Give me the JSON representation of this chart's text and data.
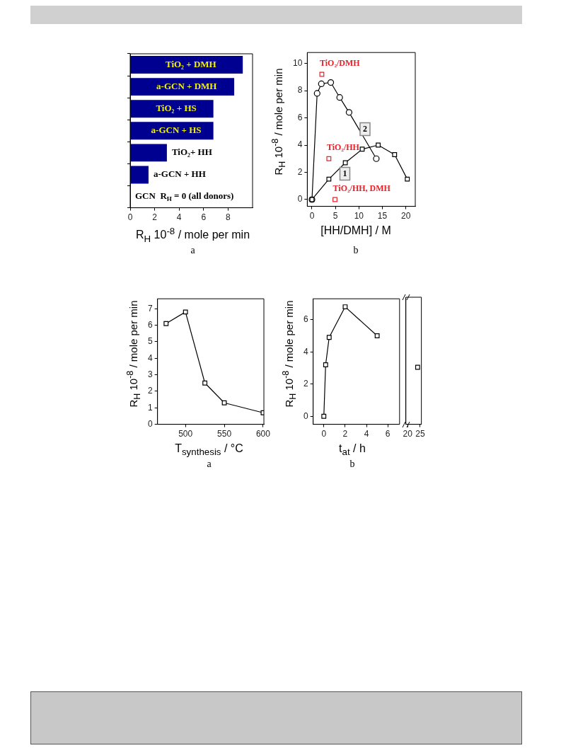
{
  "chart_data": [
    {
      "type": "bar",
      "orientation": "horizontal",
      "categories": [
        "TiO₂ + DMH",
        "a-GCN + DMH",
        "TiO₂ + HS",
        "a-GCN + HS",
        "TiO₂+ HH",
        "a-GCN + HH",
        "GCN  R$_{H}$ = 0 (all donors)"
      ],
      "values": [
        9.2,
        8.5,
        6.8,
        6.8,
        3.0,
        1.5,
        0
      ],
      "color": "#000090",
      "xlim": [
        0,
        10
      ],
      "xticks": [
        0,
        2,
        4,
        6,
        8
      ],
      "xlabel": "R$_{H}$ 10$^{-8}$ / mole per min",
      "annotations": [
        "a"
      ]
    },
    {
      "type": "line",
      "xlim": [
        -1,
        22
      ],
      "xticks": [
        0,
        5,
        10,
        15,
        20
      ],
      "ylim": [
        -0.5,
        10.8
      ],
      "yticks": [
        0,
        2,
        4,
        6,
        8,
        10
      ],
      "xlabel": "[HH/DMH] / M",
      "ylabel": "R$_{H}$ 10$^{-8}$ / mole per min",
      "annotations": [
        "b"
      ],
      "series": [
        {
          "name": "1",
          "type": "line",
          "marker": "square",
          "color": "#000000",
          "x": [
            0,
            3.6,
            7.1,
            10.7,
            14.1,
            17.6,
            20.3
          ],
          "values": [
            0,
            1.5,
            2.7,
            3.7,
            4.0,
            3.3,
            1.5
          ]
        },
        {
          "name": "2",
          "type": "line",
          "marker": "circle",
          "color": "#000000",
          "x": [
            0,
            1.1,
            2.0,
            4.0,
            5.9,
            7.9,
            13.7
          ],
          "values": [
            0,
            7.8,
            8.5,
            8.6,
            7.5,
            6.4,
            3.0
          ]
        },
        {
          "name": "TiO₂/DMH",
          "type": "scatter",
          "marker": "square",
          "color": "#e8202a",
          "x": [
            2.1
          ],
          "values": [
            9.2
          ]
        },
        {
          "name": "TiO₂/HH",
          "type": "scatter",
          "marker": "square",
          "color": "#e8202a",
          "x": [
            3.6
          ],
          "values": [
            3.0
          ]
        },
        {
          "name": "TiO₂/HH, DMH",
          "type": "scatter",
          "marker": "square",
          "color": "#e8202a",
          "x": [
            4.9
          ],
          "values": [
            0
          ]
        }
      ]
    },
    {
      "type": "line",
      "marker": "square",
      "color": "#000000",
      "x": [
        475,
        500,
        525,
        550,
        600
      ],
      "values": [
        6.1,
        6.8,
        2.5,
        1.3,
        0.7
      ],
      "xlim": [
        464,
        601
      ],
      "xticks": [
        500,
        550,
        600
      ],
      "ylim": [
        0,
        7.6
      ],
      "yticks": [
        0,
        1,
        2,
        3,
        4,
        5,
        6,
        7
      ],
      "xlabel": "T$_{synthesis}$ / °C",
      "ylabel": "R$_{H}$ 10$^{-8}$ / mole per min",
      "annotations": [
        "a"
      ]
    },
    {
      "type": "line",
      "marker": "square",
      "color": "#000000",
      "x": [
        0,
        0.17,
        0.5,
        2,
        5
      ],
      "values": [
        0,
        3.2,
        4.9,
        6.8,
        5.0
      ],
      "xlim": [
        -1,
        7.1
      ],
      "xticks": [
        0,
        2,
        4,
        6
      ],
      "ylim": [
        -0.5,
        7.3
      ],
      "yticks": [
        0,
        2,
        4,
        6
      ],
      "xlabel": "t$_{at}$ / h",
      "ylabel": "R$_{H}$ 10$^{-8}$ / mole per min",
      "annotations": [
        "b"
      ]
    },
    {
      "type": "line",
      "marker": "square",
      "color": "#000000",
      "x": [
        24
      ],
      "values": [
        3.0
      ],
      "xlim": [
        19.3,
        25.5
      ],
      "xticks": [
        20,
        25
      ],
      "ylim": [
        -0.5,
        7.3
      ],
      "tick_labels": "x"
    }
  ]
}
